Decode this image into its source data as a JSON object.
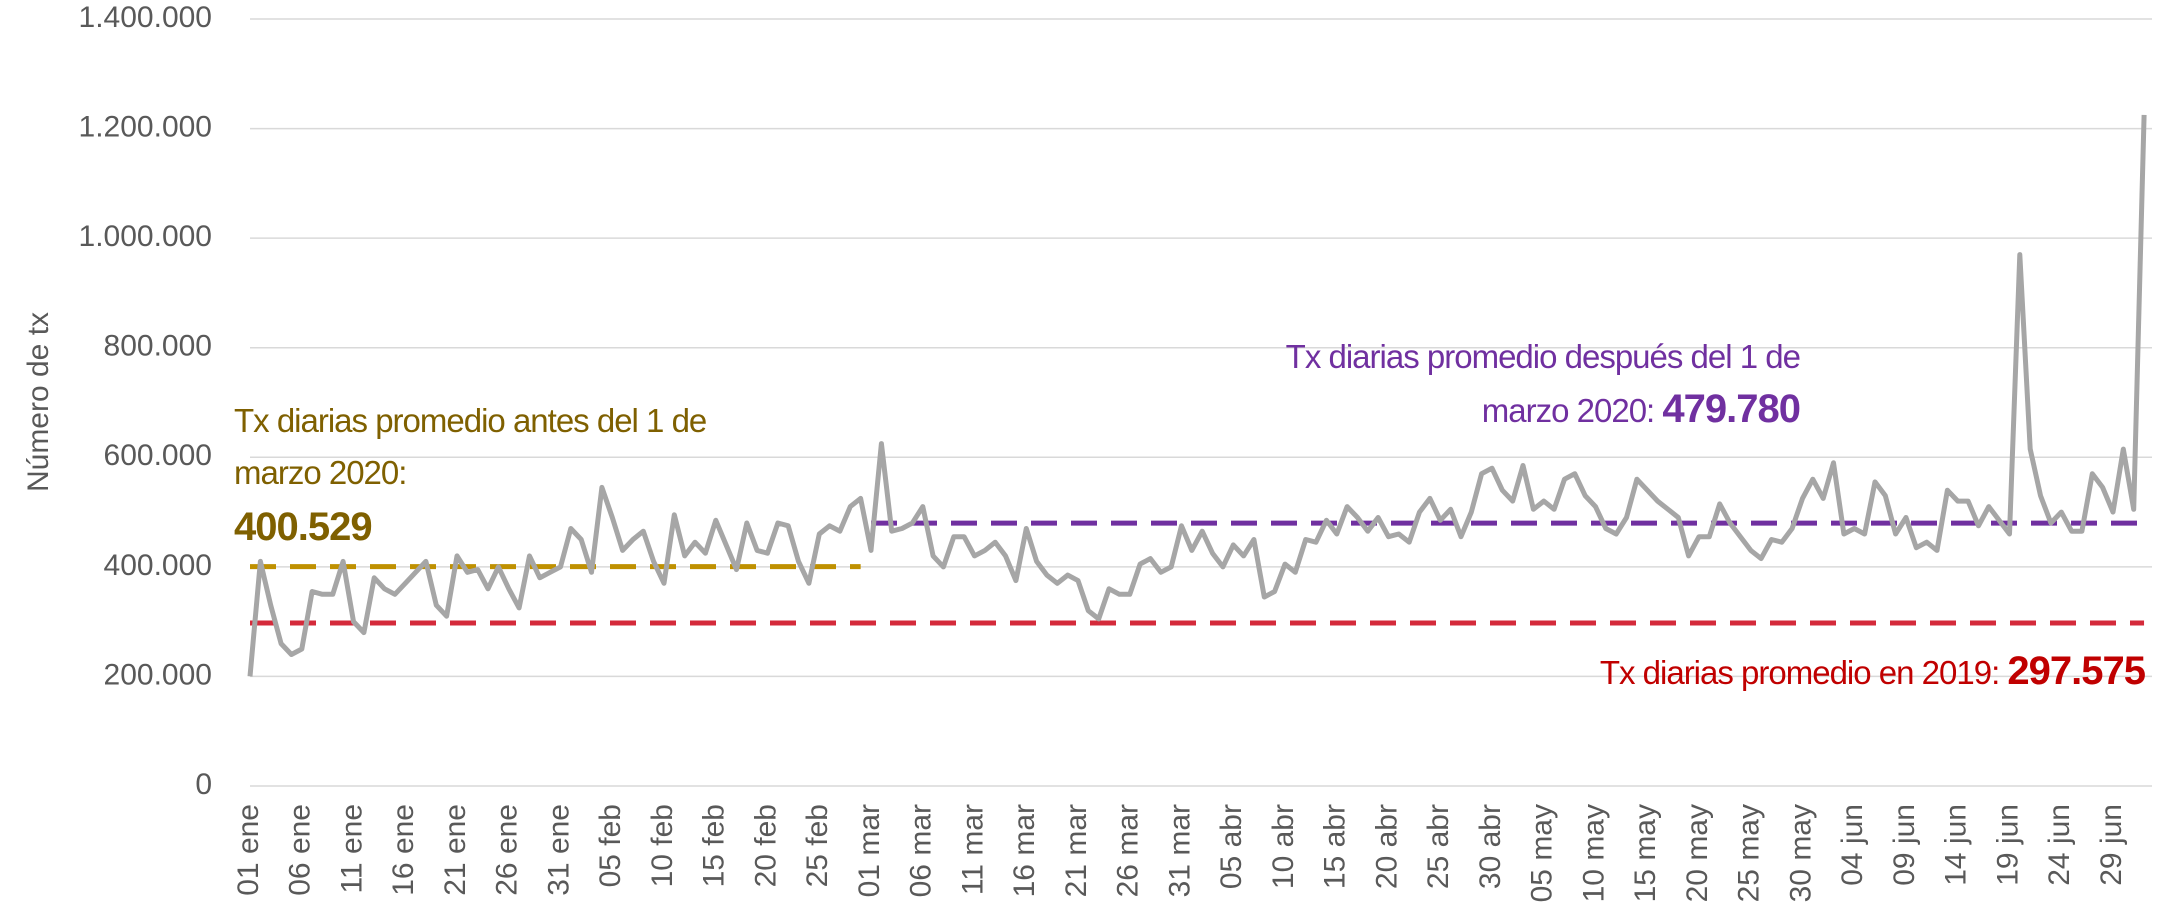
{
  "chart_data": {
    "type": "line",
    "y_label": "Número de tx",
    "categories": [
      "01 ene",
      null,
      null,
      null,
      null,
      "06 ene",
      null,
      null,
      null,
      null,
      "11 ene",
      null,
      null,
      null,
      null,
      "16 ene",
      null,
      null,
      null,
      null,
      "21 ene",
      null,
      null,
      null,
      null,
      "26 ene",
      null,
      null,
      null,
      null,
      "31 ene",
      null,
      null,
      null,
      null,
      "05 feb",
      null,
      null,
      null,
      null,
      "10 feb",
      null,
      null,
      null,
      null,
      "15 feb",
      null,
      null,
      null,
      null,
      "20 feb",
      null,
      null,
      null,
      null,
      "25 feb",
      null,
      null,
      null,
      null,
      "01 mar",
      null,
      null,
      null,
      null,
      "06 mar",
      null,
      null,
      null,
      null,
      "11 mar",
      null,
      null,
      null,
      null,
      "16 mar",
      null,
      null,
      null,
      null,
      "21 mar",
      null,
      null,
      null,
      null,
      "26 mar",
      null,
      null,
      null,
      null,
      "31 mar",
      null,
      null,
      null,
      null,
      "05 abr",
      null,
      null,
      null,
      null,
      "10 abr",
      null,
      null,
      null,
      null,
      "15 abr",
      null,
      null,
      null,
      null,
      "20 abr",
      null,
      null,
      null,
      null,
      "25 abr",
      null,
      null,
      null,
      null,
      "30 abr",
      null,
      null,
      null,
      null,
      "05 may",
      null,
      null,
      null,
      null,
      "10 may",
      null,
      null,
      null,
      null,
      "15 may",
      null,
      null,
      null,
      null,
      "20 may",
      null,
      null,
      null,
      null,
      "25 may",
      null,
      null,
      null,
      null,
      "30 may",
      null,
      null,
      null,
      null,
      "04 jun",
      null,
      null,
      null,
      null,
      "09 jun",
      null,
      null,
      null,
      null,
      "14 jun",
      null,
      null,
      null,
      null,
      "19 jun",
      null,
      null,
      null,
      null,
      "24 jun",
      null,
      null,
      null,
      null,
      "29 jun",
      null,
      null,
      null
    ],
    "series": [
      {
        "color": "#a6a6a6",
        "values": [
          200000,
          410000,
          330000,
          260000,
          240000,
          250000,
          355000,
          350000,
          350000,
          410000,
          300000,
          280000,
          380000,
          360000,
          350000,
          370000,
          390000,
          410000,
          330000,
          310000,
          420000,
          390000,
          395000,
          360000,
          400000,
          360000,
          325000,
          420000,
          380000,
          390000,
          400000,
          470000,
          450000,
          390000,
          545000,
          490000,
          430000,
          450000,
          465000,
          410000,
          370000,
          495000,
          420000,
          445000,
          425000,
          485000,
          440000,
          395000,
          480000,
          430000,
          425000,
          480000,
          475000,
          410000,
          370000,
          460000,
          475000,
          465000,
          510000,
          525000,
          430000,
          625000,
          465000,
          470000,
          480000,
          510000,
          420000,
          400000,
          455000,
          455000,
          420000,
          430000,
          445000,
          420000,
          375000,
          470000,
          410000,
          385000,
          370000,
          385000,
          375000,
          320000,
          305000,
          360000,
          350000,
          350000,
          405000,
          415000,
          390000,
          400000,
          475000,
          430000,
          465000,
          425000,
          400000,
          440000,
          420000,
          450000,
          345000,
          355000,
          405000,
          390000,
          450000,
          445000,
          485000,
          460000,
          510000,
          490000,
          465000,
          490000,
          455000,
          460000,
          445000,
          500000,
          525000,
          485000,
          505000,
          455000,
          500000,
          570000,
          580000,
          540000,
          520000,
          585000,
          505000,
          520000,
          505000,
          560000,
          570000,
          530000,
          510000,
          470000,
          460000,
          490000,
          560000,
          540000,
          520000,
          505000,
          490000,
          420000,
          455000,
          455000,
          515000,
          480000,
          455000,
          430000,
          415000,
          450000,
          445000,
          470000,
          525000,
          560000,
          525000,
          590000,
          460000,
          470000,
          460000,
          555000,
          530000,
          460000,
          490000,
          435000,
          445000,
          430000,
          540000,
          520000,
          520000,
          475000,
          510000,
          485000,
          460000,
          970000,
          615000,
          530000,
          480000,
          500000,
          465000,
          465000,
          570000,
          545000,
          500000,
          615000,
          505000,
          1225000
        ]
      }
    ],
    "ylim": [
      0,
      1400000
    ],
    "yticks": [
      0,
      {
        "value": 200000,
        "label": "200.000"
      },
      {
        "value": 400000,
        "label": "400.000"
      },
      {
        "value": 600000,
        "label": "600.000"
      },
      {
        "value": 800000,
        "label": "800.000"
      },
      {
        "value": 1000000,
        "label": "1.000.000"
      },
      {
        "value": 1200000,
        "label": "1.200.000"
      },
      {
        "value": 1400000,
        "label": "1.400.000"
      }
    ],
    "grid": true,
    "reference_lines": [
      {
        "label_lines": [
          "Tx diarias promedio antes del 1 de",
          "marzo 2020:"
        ],
        "value": 400529,
        "value_label": "400.529",
        "color": "#bf9000",
        "text_color": "#7f6000",
        "from": 0,
        "to": 59
      },
      {
        "label_lines": [
          "Tx diarias promedio después del 1 de",
          "marzo 2020: "
        ],
        "value": 479780,
        "value_label": "479.780",
        "color": "#7030a0",
        "text_color": "#7030a0",
        "from": 60,
        "to": 183
      },
      {
        "label_lines": [
          "Tx diarias promedio en 2019: "
        ],
        "value": 297575,
        "value_label": "297.575",
        "color": "#d42a3a",
        "text_color": "#c00000",
        "from": 0,
        "to": 183
      }
    ]
  }
}
